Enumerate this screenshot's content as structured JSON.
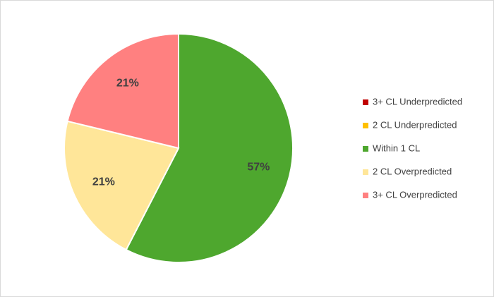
{
  "chart_data": {
    "type": "pie",
    "categories": [
      "3+ CL Underpredicted",
      "2 CL Underpredicted",
      "Within 1 CL",
      "2 CL Overpredicted",
      "3+ CL Overpredicted"
    ],
    "values": [
      0,
      0,
      57,
      21,
      21
    ],
    "value_labels": [
      null,
      null,
      "57%",
      "21%",
      "21%"
    ],
    "colors": [
      "#c00000",
      "#ffc000",
      "#4ea72e",
      "#ffe699",
      "#ff8080"
    ],
    "legend": "right"
  }
}
